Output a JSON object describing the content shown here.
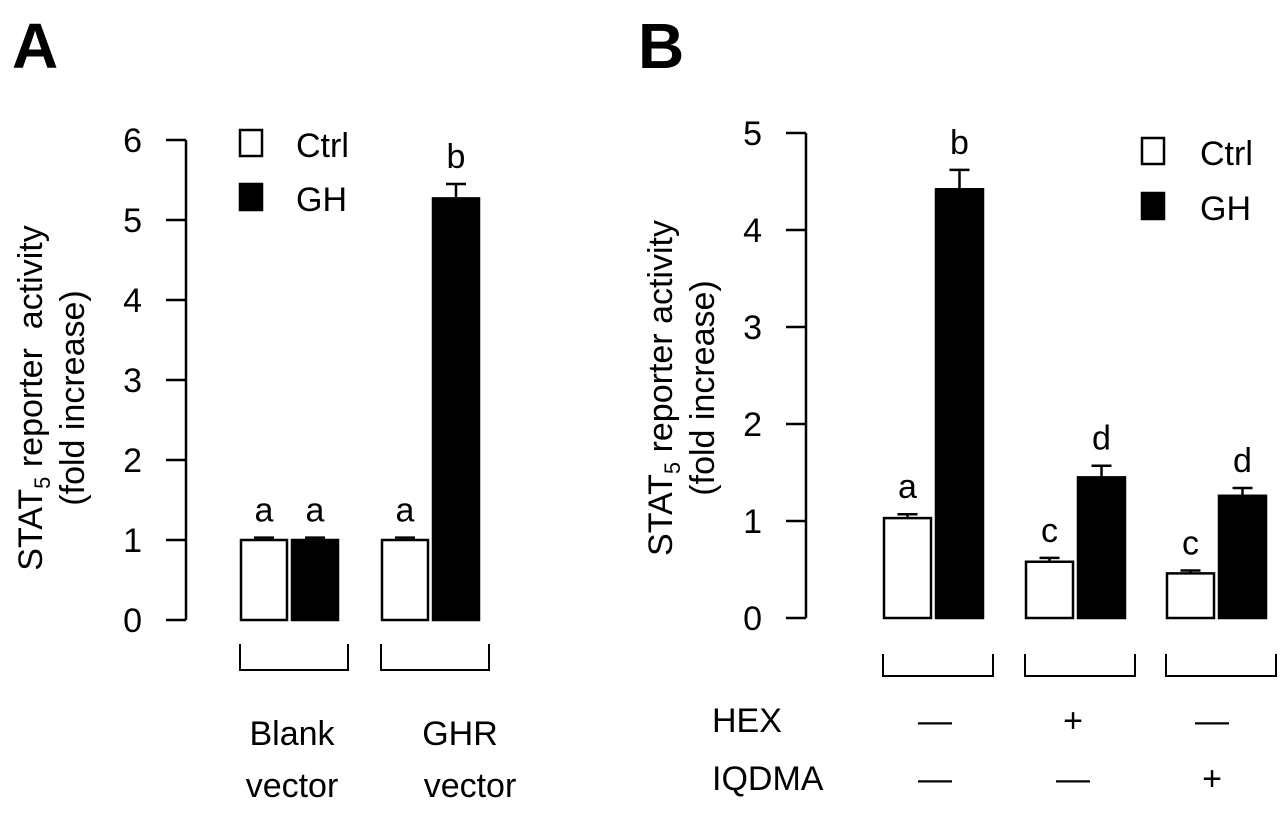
{
  "chart_data": [
    {
      "panel": "A",
      "type": "bar",
      "ylabel": "STAT5 reporter activity (fold increase)",
      "ylabel_main": "STAT",
      "ylabel_sub": "5",
      "ylabel_rest": " reporter  activity",
      "ylabel_line2": "(fold increase)",
      "ylim": [
        0,
        6
      ],
      "yticks": [
        0,
        1,
        2,
        3,
        4,
        5,
        6
      ],
      "grid": false,
      "legend_position": "top-left",
      "legend": [
        {
          "name": "Ctrl",
          "color": "#ffffff"
        },
        {
          "name": "GH",
          "color": "#000000"
        }
      ],
      "groups": [
        {
          "label_line1": "Blank",
          "label_line2": "vector",
          "bars": [
            {
              "series": "Ctrl",
              "value": 1.0,
              "error": 0.03,
              "sig": "a"
            },
            {
              "series": "GH",
              "value": 1.0,
              "error": 0.03,
              "sig": "a"
            }
          ]
        },
        {
          "label_line1": "GHR",
          "label_line2": "vector",
          "bars": [
            {
              "series": "Ctrl",
              "value": 1.0,
              "error": 0.03,
              "sig": "a"
            },
            {
              "series": "GH",
              "value": 5.27,
              "error": 0.18,
              "sig": "b"
            }
          ]
        }
      ]
    },
    {
      "panel": "B",
      "type": "bar",
      "ylabel": "STAT5 reporter activity (fold increase)",
      "ylabel_main": "STAT",
      "ylabel_sub": "5",
      "ylabel_rest": " reporter activity",
      "ylabel_line2": "(fold increase)",
      "ylim": [
        0,
        5
      ],
      "yticks": [
        0,
        1,
        2,
        3,
        4,
        5
      ],
      "grid": false,
      "legend_position": "top-right",
      "legend": [
        {
          "name": "Ctrl",
          "color": "#ffffff"
        },
        {
          "name": "GH",
          "color": "#000000"
        }
      ],
      "condition_rows": [
        {
          "name": "HEX",
          "values": [
            "—",
            "+",
            "—"
          ]
        },
        {
          "name": "IQDMA",
          "values": [
            "—",
            "—",
            "+"
          ]
        }
      ],
      "groups": [
        {
          "bars": [
            {
              "series": "Ctrl",
              "value": 1.03,
              "error": 0.04,
              "sig": "a"
            },
            {
              "series": "GH",
              "value": 4.42,
              "error": 0.2,
              "sig": "b"
            }
          ]
        },
        {
          "bars": [
            {
              "series": "Ctrl",
              "value": 0.58,
              "error": 0.04,
              "sig": "c"
            },
            {
              "series": "GH",
              "value": 1.45,
              "error": 0.12,
              "sig": "d"
            }
          ]
        },
        {
          "bars": [
            {
              "series": "Ctrl",
              "value": 0.46,
              "error": 0.03,
              "sig": "c"
            },
            {
              "series": "GH",
              "value": 1.26,
              "error": 0.08,
              "sig": "d"
            }
          ]
        }
      ]
    }
  ]
}
